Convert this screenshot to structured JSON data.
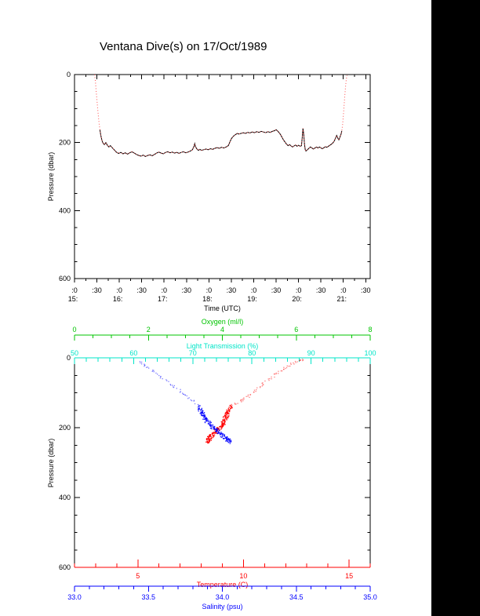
{
  "page": {
    "title": "Ventana Dive(s) on 17/Oct/1989",
    "page_bg": "#ffffff",
    "margin_bg": "#000000"
  },
  "colors": {
    "axis_black": "#000000",
    "temperature": "#ff0000",
    "salinity": "#0000ff",
    "oxygen": "#00c400",
    "light_transmission": "#00e5c8",
    "dive_track_line": "#000000",
    "dive_track_dots": "#ff4d4d"
  },
  "chart_data": [
    {
      "id": "dive-depth-vs-time",
      "type": "line",
      "xlabel": "Time (UTC)",
      "ylabel": "Pressure (dbar)",
      "x_minutes_range": [
        0,
        396
      ],
      "x_minor_step": 15,
      "x_ticks": [
        {
          "m": 0,
          "l1": ":0",
          "l2": "15:"
        },
        {
          "m": 30,
          "l1": ":30",
          "l2": ""
        },
        {
          "m": 60,
          "l1": ":0",
          "l2": "16:"
        },
        {
          "m": 90,
          "l1": ":30",
          "l2": ""
        },
        {
          "m": 120,
          "l1": ":0",
          "l2": "17:"
        },
        {
          "m": 150,
          "l1": ":30",
          "l2": ""
        },
        {
          "m": 180,
          "l1": ":0",
          "l2": "18:"
        },
        {
          "m": 210,
          "l1": ":30",
          "l2": ""
        },
        {
          "m": 240,
          "l1": ":0",
          "l2": "19:"
        },
        {
          "m": 270,
          "l1": ":30",
          "l2": ""
        },
        {
          "m": 300,
          "l1": ":0",
          "l2": "20:"
        },
        {
          "m": 330,
          "l1": ":30",
          "l2": ""
        },
        {
          "m": 360,
          "l1": ":0",
          "l2": "21:"
        },
        {
          "m": 390,
          "l1": ":30",
          "l2": ""
        }
      ],
      "y_axis": {
        "range": [
          0,
          600
        ],
        "major_ticks": [
          0,
          200,
          400,
          600
        ],
        "major_labels": [
          "0",
          "200",
          "400",
          "600"
        ],
        "minor_step": 50
      },
      "series": [
        {
          "name": "dive pressure profile",
          "points": [
            [
              27,
              0
            ],
            [
              28,
              22
            ],
            [
              29,
              48
            ],
            [
              30,
              75
            ],
            [
              31,
              100
            ],
            [
              32,
              124
            ],
            [
              33,
              145
            ],
            [
              34,
              162
            ],
            [
              35,
              176
            ],
            [
              36,
              187
            ],
            [
              37,
              195
            ],
            [
              38,
              201
            ],
            [
              40,
              206
            ],
            [
              42,
              200
            ],
            [
              44,
              208
            ],
            [
              46,
              213
            ],
            [
              48,
              209
            ],
            [
              50,
              214
            ],
            [
              53,
              221
            ],
            [
              56,
              228
            ],
            [
              59,
              232
            ],
            [
              62,
              229
            ],
            [
              65,
              233
            ],
            [
              68,
              230
            ],
            [
              71,
              234
            ],
            [
              74,
              230
            ],
            [
              77,
              227
            ],
            [
              80,
              231
            ],
            [
              83,
              235
            ],
            [
              86,
              238
            ],
            [
              89,
              240
            ],
            [
              92,
              237
            ],
            [
              95,
              241
            ],
            [
              98,
              238
            ],
            [
              101,
              236
            ],
            [
              104,
              239
            ],
            [
              107,
              235
            ],
            [
              110,
              231
            ],
            [
              113,
              228
            ],
            [
              116,
              231
            ],
            [
              119,
              233
            ],
            [
              122,
              229
            ],
            [
              125,
              227
            ],
            [
              128,
              230
            ],
            [
              131,
              228
            ],
            [
              134,
              231
            ],
            [
              137,
              229
            ],
            [
              140,
              232
            ],
            [
              143,
              229
            ],
            [
              146,
              227
            ],
            [
              149,
              230
            ],
            [
              152,
              228
            ],
            [
              155,
              225
            ],
            [
              158,
              221
            ],
            [
              160,
              211
            ],
            [
              161,
              203
            ],
            [
              162,
              212
            ],
            [
              164,
              219
            ],
            [
              166,
              223
            ],
            [
              168,
              220
            ],
            [
              170,
              223
            ],
            [
              173,
              221
            ],
            [
              176,
              219
            ],
            [
              179,
              221
            ],
            [
              182,
              218
            ],
            [
              185,
              220
            ],
            [
              188,
              217
            ],
            [
              191,
              215
            ],
            [
              194,
              217
            ],
            [
              197,
              214
            ],
            [
              200,
              216
            ],
            [
              203,
              213
            ],
            [
              206,
              209
            ],
            [
              208,
              199
            ],
            [
              210,
              189
            ],
            [
              212,
              183
            ],
            [
              214,
              179
            ],
            [
              216,
              176
            ],
            [
              218,
              173
            ],
            [
              220,
              175
            ],
            [
              223,
              173
            ],
            [
              226,
              171
            ],
            [
              229,
              173
            ],
            [
              232,
              170
            ],
            [
              235,
              172
            ],
            [
              238,
              169
            ],
            [
              241,
              171
            ],
            [
              244,
              168
            ],
            [
              247,
              170
            ],
            [
              250,
              167
            ],
            [
              253,
              169
            ],
            [
              256,
              171
            ],
            [
              259,
              168
            ],
            [
              262,
              170
            ],
            [
              265,
              167
            ],
            [
              268,
              165
            ],
            [
              270,
              162
            ],
            [
              272,
              166
            ],
            [
              274,
              171
            ],
            [
              276,
              177
            ],
            [
              278,
              185
            ],
            [
              280,
              193
            ],
            [
              282,
              199
            ],
            [
              284,
              205
            ],
            [
              286,
              209
            ],
            [
              288,
              206
            ],
            [
              290,
              210
            ],
            [
              292,
              213
            ],
            [
              294,
              210
            ],
            [
              296,
              207
            ],
            [
              298,
              211
            ],
            [
              300,
              208
            ],
            [
              302,
              211
            ],
            [
              304,
              209
            ],
            [
              305,
              184
            ],
            [
              306,
              158
            ],
            [
              307,
              177
            ],
            [
              308,
              204
            ],
            [
              309,
              221
            ],
            [
              310,
              225
            ],
            [
              312,
              221
            ],
            [
              314,
              217
            ],
            [
              316,
              213
            ],
            [
              318,
              216
            ],
            [
              320,
              219
            ],
            [
              322,
              216
            ],
            [
              324,
              213
            ],
            [
              326,
              216
            ],
            [
              328,
              213
            ],
            [
              330,
              216
            ],
            [
              332,
              218
            ],
            [
              334,
              215
            ],
            [
              336,
              212
            ],
            [
              338,
              214
            ],
            [
              340,
              211
            ],
            [
              342,
              208
            ],
            [
              344,
              205
            ],
            [
              346,
              201
            ],
            [
              348,
              195
            ],
            [
              350,
              185
            ],
            [
              351,
              179
            ],
            [
              352,
              183
            ],
            [
              353,
              189
            ],
            [
              354,
              192
            ],
            [
              355,
              187
            ],
            [
              356,
              181
            ],
            [
              357,
              175
            ],
            [
              358,
              166
            ],
            [
              359,
              148
            ],
            [
              360,
              122
            ],
            [
              361,
              92
            ],
            [
              362,
              62
            ],
            [
              363,
              35
            ],
            [
              364,
              14
            ],
            [
              365,
              2
            ]
          ]
        }
      ]
    },
    {
      "id": "water-property-profiles",
      "type": "scatter",
      "ylabel": "Pressure (dbar)",
      "y_axis": {
        "range": [
          0,
          600
        ],
        "major_ticks": [
          0,
          200,
          400,
          600
        ],
        "major_labels": [
          "0",
          "200",
          "400",
          "600"
        ],
        "minor_step": 50
      },
      "top_axes": [
        {
          "key": "oxygen",
          "title": "Oxygen (ml/l)",
          "color": "#00c400",
          "range": [
            0,
            8
          ],
          "major_ticks": [
            0,
            2,
            4,
            6,
            8
          ],
          "major_labels": [
            "0",
            "2",
            "4",
            "6",
            "8"
          ],
          "minor_step": 0.5
        },
        {
          "key": "light_transmission",
          "title": "Light Transmission (%)",
          "color": "#00e5c8",
          "range": [
            50,
            100
          ],
          "major_ticks": [
            50,
            60,
            70,
            80,
            90,
            100
          ],
          "major_labels": [
            "50",
            "60",
            "70",
            "80",
            "90",
            "100"
          ],
          "minor_step": 2
        }
      ],
      "bottom_axes": [
        {
          "key": "temperature",
          "title": "Temperature (C)",
          "color": "#ff0000",
          "range": [
            2,
            16
          ],
          "major_ticks": [
            5,
            10,
            15
          ],
          "major_labels": [
            "5",
            "10",
            "15"
          ],
          "minor_step": 1
        },
        {
          "key": "salinity",
          "title": "Salinity (psu)",
          "color": "#0000ff",
          "range": [
            33.0,
            35.0
          ],
          "major_ticks": [
            33.0,
            33.5,
            34.0,
            34.5,
            35.0
          ],
          "major_labels": [
            "33.0",
            "33.5",
            "34.0",
            "34.5",
            "35.0"
          ],
          "minor_step": 0.1
        }
      ],
      "series": [
        {
          "name": "temperature profile",
          "axis": "temperature",
          "color": "#ff0000",
          "dense_below": 140,
          "points": [
            [
              12.9,
              2
            ],
            [
              12.7,
              6
            ],
            [
              12.5,
              10
            ],
            [
              12.3,
              16
            ],
            [
              12.1,
              22
            ],
            [
              11.9,
              30
            ],
            [
              11.7,
              38
            ],
            [
              11.5,
              46
            ],
            [
              11.3,
              55
            ],
            [
              11.1,
              64
            ],
            [
              10.9,
              74
            ],
            [
              10.7,
              84
            ],
            [
              10.5,
              95
            ],
            [
              10.3,
              105
            ],
            [
              10.1,
              113
            ],
            [
              9.9,
              120
            ],
            [
              9.7,
              127
            ],
            [
              9.5,
              133
            ],
            [
              9.4,
              140
            ],
            [
              9.3,
              147
            ],
            [
              9.25,
              154
            ],
            [
              9.2,
              161
            ],
            [
              9.15,
              168
            ],
            [
              9.1,
              175
            ],
            [
              9.05,
              182
            ],
            [
              9.0,
              188
            ],
            [
              8.9,
              195
            ],
            [
              8.8,
              201
            ],
            [
              8.7,
              207
            ],
            [
              8.6,
              213
            ],
            [
              8.5,
              219
            ],
            [
              8.4,
              225
            ],
            [
              8.35,
              230
            ],
            [
              8.3,
              235
            ],
            [
              8.25,
              239
            ]
          ]
        },
        {
          "name": "salinity profile",
          "axis": "salinity",
          "color": "#0000ff",
          "dense_below": 140,
          "points": [
            [
              33.44,
              10
            ],
            [
              33.46,
              16
            ],
            [
              33.48,
              24
            ],
            [
              33.52,
              34
            ],
            [
              33.55,
              44
            ],
            [
              33.58,
              54
            ],
            [
              33.62,
              66
            ],
            [
              33.66,
              78
            ],
            [
              33.7,
              90
            ],
            [
              33.73,
              100
            ],
            [
              33.76,
              110
            ],
            [
              33.79,
              120
            ],
            [
              33.82,
              130
            ],
            [
              33.84,
              140
            ],
            [
              33.85,
              150
            ],
            [
              33.86,
              158
            ],
            [
              33.87,
              165
            ],
            [
              33.88,
              172
            ],
            [
              33.89,
              180
            ],
            [
              33.91,
              188
            ],
            [
              33.93,
              196
            ],
            [
              33.95,
              203
            ],
            [
              33.97,
              210
            ],
            [
              33.99,
              217
            ],
            [
              34.01,
              224
            ],
            [
              34.03,
              231
            ],
            [
              34.04,
              236
            ],
            [
              34.05,
              240
            ]
          ]
        }
      ]
    }
  ]
}
